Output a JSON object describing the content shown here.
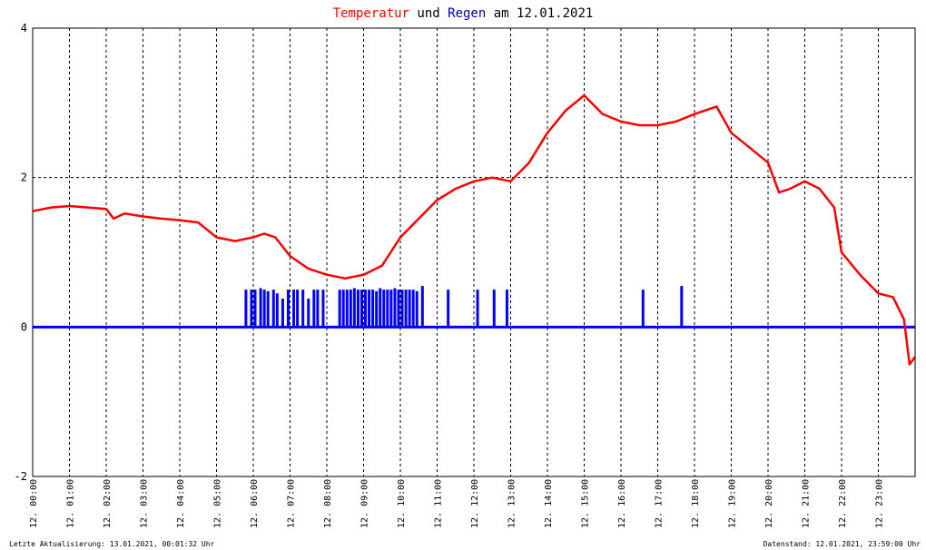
{
  "chart_data": {
    "type": "line",
    "title": {
      "part1": "Temperatur",
      "part2": " und ",
      "part3": "Regen",
      "part4": " am 12.01.2021"
    },
    "xlabel": "",
    "ylabel": "",
    "ylim": [
      -2,
      4
    ],
    "yticks": [
      "4",
      "2",
      "0",
      "-2"
    ],
    "xlim_hours": [
      0,
      24
    ],
    "xticks": [
      "12. 00:00",
      "12. 01:00",
      "12. 02:00",
      "12. 03:00",
      "12. 04:00",
      "12. 05:00",
      "12. 06:00",
      "12. 07:00",
      "12. 08:00",
      "12. 09:00",
      "12. 10:00",
      "12. 11:00",
      "12. 12:00",
      "12. 13:00",
      "12. 14:00",
      "12. 15:00",
      "12. 16:00",
      "12. 17:00",
      "12. 18:00",
      "12. 19:00",
      "12. 20:00",
      "12. 21:00",
      "12. 22:00",
      "12. 23:00"
    ],
    "grid": true,
    "colors": {
      "temperature": "#ff0000",
      "rain": "#0000ff",
      "grid": "#000000"
    },
    "series": [
      {
        "name": "Temperatur",
        "hours": [
          0,
          0.5,
          1,
          1.5,
          2,
          2.2,
          2.5,
          3,
          3.5,
          4,
          4.5,
          5,
          5.5,
          6,
          6.3,
          6.6,
          7,
          7.5,
          8,
          8.5,
          9,
          9.5,
          10,
          10.5,
          11,
          11.5,
          12,
          12.5,
          13,
          13.5,
          14,
          14.5,
          15,
          15.5,
          16,
          16.5,
          17,
          17.5,
          18,
          18.3,
          18.6,
          19,
          19.5,
          20,
          20.3,
          20.6,
          21,
          21.4,
          21.8,
          22,
          22.5,
          23,
          23.4,
          23.7,
          23.85,
          24
        ],
        "values": [
          1.55,
          1.6,
          1.62,
          1.6,
          1.58,
          1.45,
          1.52,
          1.48,
          1.45,
          1.43,
          1.4,
          1.2,
          1.15,
          1.2,
          1.25,
          1.2,
          0.95,
          0.78,
          0.7,
          0.65,
          0.7,
          0.82,
          1.2,
          1.45,
          1.7,
          1.85,
          1.95,
          2.0,
          1.95,
          2.2,
          2.6,
          2.9,
          3.1,
          2.85,
          2.75,
          2.7,
          2.7,
          2.75,
          2.85,
          2.9,
          2.95,
          2.6,
          2.4,
          2.2,
          1.8,
          1.85,
          1.95,
          1.85,
          1.6,
          1.0,
          0.7,
          0.45,
          0.4,
          0.1,
          -0.5,
          -0.4
        ]
      },
      {
        "name": "Regen",
        "hours": [
          5.8,
          5.95,
          6.05,
          6.2,
          6.3,
          6.4,
          6.55,
          6.65,
          6.8,
          6.95,
          7.1,
          7.2,
          7.35,
          7.5,
          7.65,
          7.75,
          7.9,
          8.35,
          8.45,
          8.55,
          8.65,
          8.75,
          8.85,
          8.95,
          9.05,
          9.15,
          9.25,
          9.35,
          9.45,
          9.55,
          9.65,
          9.75,
          9.85,
          9.95,
          10.05,
          10.15,
          10.25,
          10.35,
          10.45,
          10.6,
          11.3,
          12.1,
          12.55,
          12.9,
          16.6,
          17.65
        ],
        "values": [
          0.5,
          0.5,
          0.5,
          0.52,
          0.5,
          0.48,
          0.5,
          0.45,
          0.38,
          0.5,
          0.5,
          0.5,
          0.5,
          0.38,
          0.5,
          0.5,
          0.5,
          0.5,
          0.5,
          0.5,
          0.5,
          0.52,
          0.5,
          0.5,
          0.5,
          0.5,
          0.5,
          0.48,
          0.52,
          0.5,
          0.5,
          0.5,
          0.52,
          0.5,
          0.5,
          0.5,
          0.5,
          0.5,
          0.48,
          0.55,
          0.5,
          0.5,
          0.5,
          0.5,
          0.5,
          0.55
        ]
      }
    ]
  },
  "footer": {
    "left": "Letzte Aktualisierung: 13.01.2021, 00:01:32 Uhr",
    "right": "Datenstand: 12.01.2021, 23:59:00 Uhr"
  }
}
